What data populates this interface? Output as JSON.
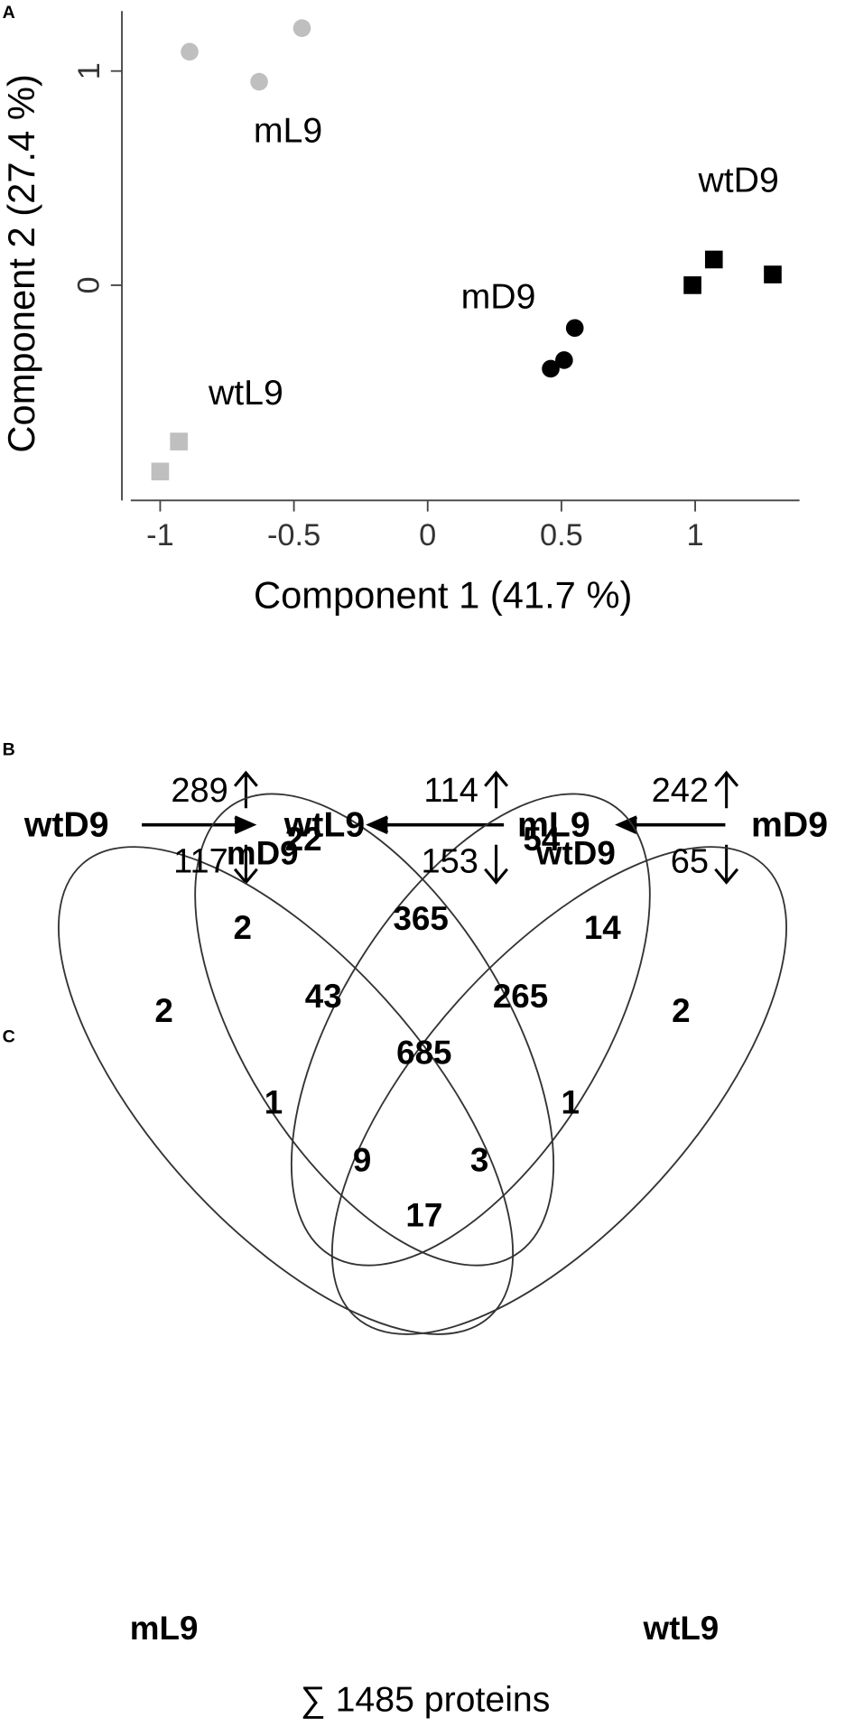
{
  "panel_labels": [
    "A",
    "B",
    "C"
  ],
  "chart_data": {
    "type": "scatter",
    "xlabel": "Component 1 (41.7 %)",
    "ylabel": "Component 2 (27.4 %)",
    "xlim": [
      -1.11,
      1.39
    ],
    "ylim": [
      -1.005,
      1.28
    ],
    "xticks": [
      -1,
      -0.5,
      0,
      0.5,
      1
    ],
    "yticks": [
      0,
      1
    ],
    "series": [
      {
        "name": "mL9",
        "color": "#bfbfbf",
        "marker": "circle",
        "x": [
          -0.89,
          -0.63,
          -0.47
        ],
        "values": [
          1.09,
          0.95,
          1.2
        ]
      },
      {
        "name": "wtL9",
        "color": "#bfbfbf",
        "marker": "square",
        "x": [
          -0.93,
          -1.0
        ],
        "values": [
          -0.73,
          -0.87
        ]
      },
      {
        "name": "mD9",
        "color": "#000000",
        "marker": "circle",
        "x": [
          0.55,
          0.51,
          0.46
        ],
        "values": [
          -0.2,
          -0.35,
          -0.39
        ]
      },
      {
        "name": "wtD9",
        "color": "#000000",
        "marker": "square",
        "x": [
          0.99,
          1.07,
          1.29
        ],
        "values": [
          0.0,
          0.12,
          0.05
        ]
      }
    ]
  },
  "comparisons": {
    "nodes": [
      "wtD9",
      "wtL9",
      "mL9",
      "mD9"
    ],
    "edges": [
      {
        "up": 289,
        "down": 117
      },
      {
        "up": 114,
        "down": 153
      },
      {
        "up": 242,
        "down": 65
      }
    ]
  },
  "venn": {
    "sets": [
      "mD9",
      "wtD9",
      "mL9",
      "wtL9"
    ],
    "regions": [
      22,
      54,
      2,
      365,
      14,
      2,
      43,
      265,
      2,
      685,
      1,
      1,
      9,
      3,
      17
    ],
    "total_label": "∑ 1485 proteins"
  }
}
